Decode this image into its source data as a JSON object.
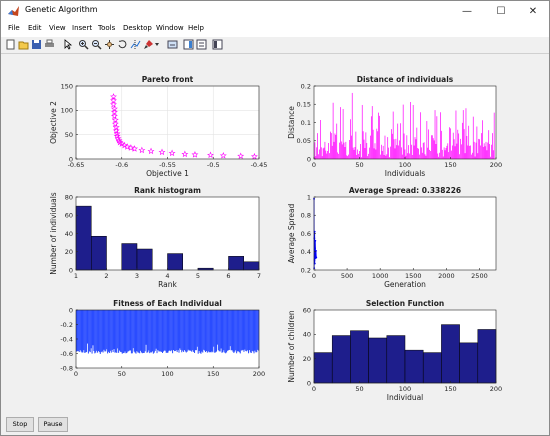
{
  "window": {
    "title": "Genetic Algorithm",
    "minimize_symbol": "—",
    "maximize_symbol": "☐",
    "close_symbol": "✕"
  },
  "menu": [
    "File",
    "Edit",
    "View",
    "Insert",
    "Tools",
    "Desktop",
    "Window",
    "Help"
  ],
  "toolbar_icons": [
    "new-figure-icon",
    "open-icon",
    "save-icon",
    "print-icon",
    "pointer-icon",
    "zoom-in-icon",
    "zoom-out-icon",
    "rotate-icon",
    "pan-icon",
    "data-cursor-icon",
    "brush-icon",
    "link-icon",
    "colorbar-icon",
    "legend-icon",
    "property-icon"
  ],
  "buttons": {
    "stop": "Stop",
    "pause": "Pause"
  },
  "colors": {
    "magenta": "#ff00ff",
    "bar_fill": "#1e1e8c",
    "blue_line": "#0000ff"
  },
  "chart_data": [
    {
      "type": "scatter",
      "title": "Pareto front",
      "xlabel": "Objective 1",
      "ylabel": "Objective 2",
      "xlim": [
        -0.65,
        -0.45
      ],
      "ylim": [
        0,
        150
      ],
      "xticks": [
        "-0.65",
        "-0.6",
        "-0.55",
        "-0.5",
        "-0.45"
      ],
      "yticks": [
        "0",
        "50",
        "100",
        "150"
      ],
      "grid": true,
      "x": [
        -0.609,
        -0.609,
        -0.609,
        -0.608,
        -0.608,
        -0.608,
        -0.607,
        -0.607,
        -0.606,
        -0.606,
        -0.605,
        -0.605,
        -0.604,
        -0.603,
        -0.602,
        -0.6,
        -0.597,
        -0.594,
        -0.59,
        -0.586,
        -0.578,
        -0.568,
        -0.556,
        -0.545,
        -0.531,
        -0.52,
        -0.503,
        -0.489,
        -0.47,
        -0.455
      ],
      "y": [
        128,
        120,
        112,
        103,
        96,
        88,
        80,
        72,
        65,
        58,
        52,
        47,
        42,
        38,
        34,
        31,
        28,
        25,
        23,
        21,
        18,
        16,
        14,
        12,
        10,
        9,
        8,
        7,
        6,
        5
      ]
    },
    {
      "type": "bar",
      "title": "Distance of individuals",
      "xlabel": "Individuals",
      "ylabel": "Distance",
      "xlim": [
        0,
        200
      ],
      "ylim": [
        0,
        0.2
      ],
      "xticks": [
        "0",
        "50",
        "100",
        "150",
        "200"
      ],
      "yticks": [
        "0",
        "0.05",
        "0.1",
        "0.15",
        "0.2"
      ],
      "values": [
        0.046,
        0.008,
        0.032,
        0.071,
        0.013,
        0.026,
        0.107,
        0.032,
        0.008,
        0.029,
        0.031,
        0.047,
        0.023,
        0.015,
        0.022,
        0.044,
        0.016,
        0.075,
        0.071,
        0.036,
        0.154,
        0.047,
        0.07,
        0.066,
        0.097,
        0.018,
        0.014,
        0.045,
        0.142,
        0.048,
        0.04,
        0.137,
        0.045,
        0.033,
        0.047,
        0.01,
        0.008,
        0.012,
        0.052,
        0.109,
        0.064,
        0.181,
        0.031,
        0.025,
        0.033,
        0.075,
        0.011,
        0.026,
        0.014,
        0.022,
        0.041,
        0.005,
        0.148,
        0.076,
        0.053,
        0.03,
        0.073,
        0.044,
        0.008,
        0.014,
        0.031,
        0.064,
        0.117,
        0.145,
        0.08,
        0.029,
        0.043,
        0.026,
        0.083,
        0.076,
        0.127,
        0.118,
        0.012,
        0.039,
        0.022,
        0.036,
        0.011,
        0.064,
        0.009,
        0.013,
        0.06,
        0.031,
        0.005,
        0.034,
        0.082,
        0.069,
        0.13,
        0.054,
        0.029,
        0.055,
        0.038,
        0.097,
        0.037,
        0.051,
        0.098,
        0.032,
        0.012,
        0.149,
        0.07,
        0.026,
        0.009,
        0.065,
        0.016,
        0.038,
        0.015,
        0.156,
        0.039,
        0.011,
        0.148,
        0.037,
        0.06,
        0.054,
        0.086,
        0.03,
        0.028,
        0.012,
        0.128,
        0.032,
        0.017,
        0.044,
        0.046,
        0.013,
        0.009,
        0.104,
        0.031,
        0.081,
        0.025,
        0.022,
        0.065,
        0.065,
        0.057,
        0.051,
        0.134,
        0.041,
        0.117,
        0.015,
        0.006,
        0.017,
        0.128,
        0.077,
        0.025,
        0.007,
        0.032,
        0.024,
        0.03,
        0.036,
        0.043,
        0.019,
        0.087,
        0.084,
        0.023,
        0.037,
        0.072,
        0.054,
        0.035,
        0.133,
        0.042,
        0.08,
        0.07,
        0.013,
        0.055,
        0.04,
        0.099,
        0.134,
        0.082,
        0.016,
        0.139,
        0.063,
        0.037,
        0.091,
        0.036,
        0.037,
        0.012,
        0.017,
        0.116,
        0.047,
        0.007,
        0.045,
        0.089,
        0.016,
        0.055,
        0.054,
        0.037,
        0.071,
        0.106,
        0.033,
        0.043,
        0.035,
        0.047,
        0.024,
        0.045,
        0.079,
        0.041,
        0.006,
        0.039,
        0.071,
        0.024,
        0.127
      ]
    },
    {
      "type": "bar",
      "title": "Rank histogram",
      "xlabel": "Rank",
      "ylabel": "Number of individuals",
      "xlim": [
        1,
        7
      ],
      "ylim": [
        0,
        80
      ],
      "xticks": [
        "1",
        "2",
        "3",
        "4",
        "5",
        "6",
        "7"
      ],
      "yticks": [
        "0",
        "20",
        "40",
        "60",
        "80"
      ],
      "bin_centers": [
        1.25,
        1.75,
        2.75,
        3.25,
        4.25,
        5.25,
        6.25,
        6.75
      ],
      "values": [
        70,
        37,
        29,
        23,
        18,
        2,
        15,
        9
      ]
    },
    {
      "type": "line",
      "title": "Average Spread: 0.338226",
      "xlabel": "Generation",
      "ylabel": "Average Spread",
      "xlim": [
        0,
        2750
      ],
      "ylim": [
        0.2,
        1
      ],
      "xticks": [
        "0",
        "500",
        "1000",
        "1500",
        "2000",
        "2500"
      ],
      "yticks": [
        "0.2",
        "0.4",
        "0.6",
        "0.8",
        "1"
      ],
      "x": [
        1,
        3,
        5,
        8,
        10,
        12,
        15,
        18,
        20,
        25,
        30,
        35
      ],
      "y": [
        0.98,
        0.22,
        0.55,
        0.31,
        0.62,
        0.27,
        0.44,
        0.36,
        0.52,
        0.33,
        0.41,
        0.338
      ]
    },
    {
      "type": "bar",
      "title": "Fitness of Each Individual",
      "xlabel": "",
      "ylabel": "",
      "xlim": [
        0,
        200
      ],
      "ylim": [
        -0.8,
        0
      ],
      "xticks": [
        "0",
        "50",
        "100",
        "150",
        "200"
      ],
      "yticks": [
        "-0.8",
        "-0.6",
        "-0.4",
        "-0.2",
        "0"
      ],
      "values": [
        -0.573,
        -0.568,
        -0.567,
        -0.579,
        -0.553,
        -0.573,
        -0.587,
        -0.585,
        -0.554,
        -0.591,
        -0.586,
        -0.579,
        -0.463,
        -0.6,
        -0.57,
        -0.581,
        -0.528,
        -0.601,
        -0.487,
        -0.566,
        -0.598,
        -0.588,
        -0.563,
        -0.588,
        -0.566,
        -0.581,
        -0.606,
        -0.581,
        -0.571,
        -0.586,
        -0.549,
        -0.571,
        -0.571,
        -0.542,
        -0.599,
        -0.577,
        -0.592,
        -0.563,
        -0.588,
        -0.551,
        -0.58,
        -0.539,
        -0.588,
        -0.584,
        -0.592,
        -0.53,
        -0.591,
        -0.56,
        -0.577,
        -0.582,
        -0.603,
        -0.593,
        -0.594,
        -0.572,
        -0.597,
        -0.593,
        -0.575,
        -0.568,
        -0.559,
        -0.558,
        -0.598,
        -0.597,
        -0.526,
        -0.574,
        -0.588,
        -0.602,
        -0.567,
        -0.585,
        -0.589,
        -0.597,
        -0.563,
        -0.586,
        -0.596,
        -0.593,
        -0.592,
        -0.57,
        -0.48,
        -0.59,
        -0.583,
        -0.558,
        -0.595,
        -0.584,
        -0.585,
        -0.571,
        -0.602,
        -0.588,
        -0.564,
        -0.534,
        -0.595,
        -0.553,
        -0.571,
        -0.572,
        -0.573,
        -0.578,
        -0.593,
        -0.573,
        -0.56,
        -0.562,
        -0.589,
        -0.592,
        -0.587,
        -0.563,
        -0.559,
        -0.568,
        -0.555,
        -0.596,
        -0.552,
        -0.567,
        -0.566,
        -0.555,
        -0.58,
        -0.553,
        -0.589,
        -0.53,
        -0.551,
        -0.583,
        -0.56,
        -0.578,
        -0.553,
        -0.572,
        -0.586,
        -0.574,
        -0.548,
        -0.56,
        -0.557,
        -0.564,
        -0.576,
        -0.555,
        -0.578,
        -0.593,
        -0.554,
        -0.554,
        -0.507,
        -0.603,
        -0.565,
        -0.591,
        -0.604,
        -0.574,
        -0.587,
        -0.549,
        -0.559,
        -0.58,
        -0.566,
        -0.588,
        -0.571,
        -0.584,
        -0.58,
        -0.585,
        -0.573,
        -0.583,
        -0.506,
        -0.589,
        -0.585,
        -0.574,
        -0.478,
        -0.555,
        -0.569,
        -0.572,
        -0.531,
        -0.59,
        -0.582,
        -0.556,
        -0.587,
        -0.597,
        -0.585,
        -0.562,
        -0.556,
        -0.551,
        -0.499,
        -0.555,
        -0.555,
        -0.575,
        -0.593,
        -0.575,
        -0.556,
        -0.597,
        -0.57,
        -0.571,
        -0.583,
        -0.599,
        -0.559,
        -0.557,
        -0.55,
        -0.577,
        -0.546,
        -0.566,
        -0.57,
        -0.556,
        -0.597,
        -0.553,
        -0.585,
        -0.593,
        -0.564,
        -0.572,
        -0.598,
        -0.561,
        -0.583,
        -0.582,
        -0.55,
        -0.56
      ]
    },
    {
      "type": "bar",
      "title": "Selection Function",
      "xlabel": "Individual",
      "ylabel": "Number of children",
      "xlim": [
        0,
        200
      ],
      "ylim": [
        0,
        60
      ],
      "xticks": [
        "0",
        "50",
        "100",
        "150",
        "200"
      ],
      "yticks": [
        "0",
        "20",
        "40",
        "60"
      ],
      "values": [
        25,
        39,
        43,
        37,
        39,
        27,
        25,
        48,
        33,
        44
      ]
    }
  ]
}
